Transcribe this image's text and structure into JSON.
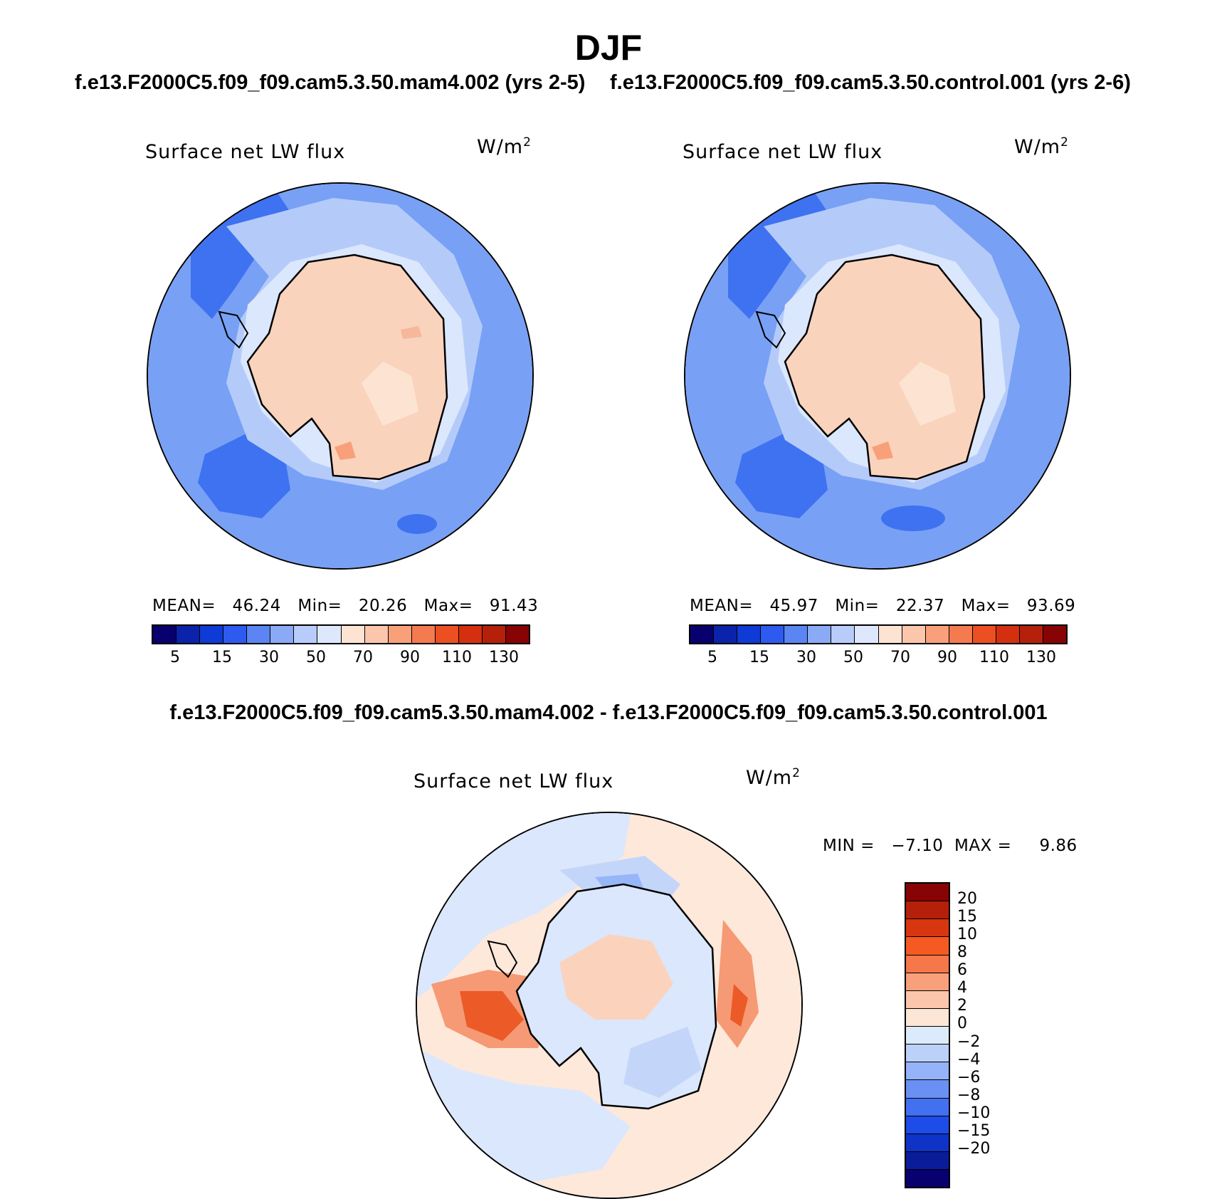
{
  "title": "DJF",
  "subtitles": {
    "left": "f.e13.F2000C5.f09_f09.cam5.3.50.mam4.002 (yrs 2-5)",
    "right": "f.e13.F2000C5.f09_f09.cam5.3.50.control.001 (yrs 2-6)",
    "diff": "f.e13.F2000C5.f09_f09.cam5.3.50.mam4.002 - f.e13.F2000C5.f09_f09.cam5.3.50.control.001"
  },
  "panels": [
    {
      "id": "mam4",
      "variable": "Surface net LW flux",
      "units_base": "W/m",
      "units_exp": "2",
      "stats": {
        "mean_label": "MEAN=",
        "mean": "46.24",
        "min_label": "Min=",
        "min": "20.26",
        "max_label": "Max=",
        "max": "91.43"
      }
    },
    {
      "id": "control",
      "variable": "Surface net LW flux",
      "units_base": "W/m",
      "units_exp": "2",
      "stats": {
        "mean_label": "MEAN=",
        "mean": "45.97",
        "min_label": "Min=",
        "min": "22.37",
        "max_label": "Max=",
        "max": "93.69"
      }
    },
    {
      "id": "difference",
      "variable": "Surface net LW flux",
      "units_base": "W/m",
      "units_exp": "2",
      "stats": {
        "min_label": "MIN =",
        "min": "−7.10",
        "max_label": "MAX =",
        "max": "9.86"
      }
    }
  ],
  "colorbar_abs": {
    "colors": [
      "#08006e",
      "#0a23aa",
      "#0e3ad6",
      "#2d5bf0",
      "#5a85f2",
      "#8aaaf6",
      "#b8ccfb",
      "#dde8fc",
      "#fde4d2",
      "#fbc6ac",
      "#f8a07a",
      "#f47a50",
      "#ec4f22",
      "#d4300f",
      "#b4200a",
      "#870304"
    ],
    "ticks": [
      "5",
      "15",
      "30",
      "50",
      "70",
      "90",
      "110",
      "130"
    ]
  },
  "colorbar_diff": {
    "colors": [
      "#870304",
      "#b4200a",
      "#d83610",
      "#f55a22",
      "#f6774a",
      "#f8a07a",
      "#fbc6ac",
      "#fde6d6",
      "#dcebfc",
      "#bcd1fa",
      "#94b3f8",
      "#6a90f4",
      "#4370f0",
      "#1e4ce8",
      "#0f33c6",
      "#0a1c99",
      "#08006e"
    ],
    "ticks": [
      "20",
      "15",
      "10",
      "8",
      "6",
      "4",
      "2",
      "0",
      "−2",
      "−4",
      "−6",
      "−8",
      "−10",
      "−15",
      "−20"
    ]
  },
  "map_colors": {
    "ocean_deep": "#3e72f1",
    "ocean": "#78a0f5",
    "ocean_light": "#b4cbfa",
    "ice_edge": "#dbe7fc",
    "land": "#fad3bd",
    "land_warm": "#f6b79a",
    "diff_neg": "#c3d6fa",
    "diff_neg2": "#97b6f7",
    "diff_pos": "#fbd3bd",
    "diff_pos2": "#f59a74",
    "diff_pos3": "#ec5a28",
    "diff_bg": "#fde8da"
  }
}
